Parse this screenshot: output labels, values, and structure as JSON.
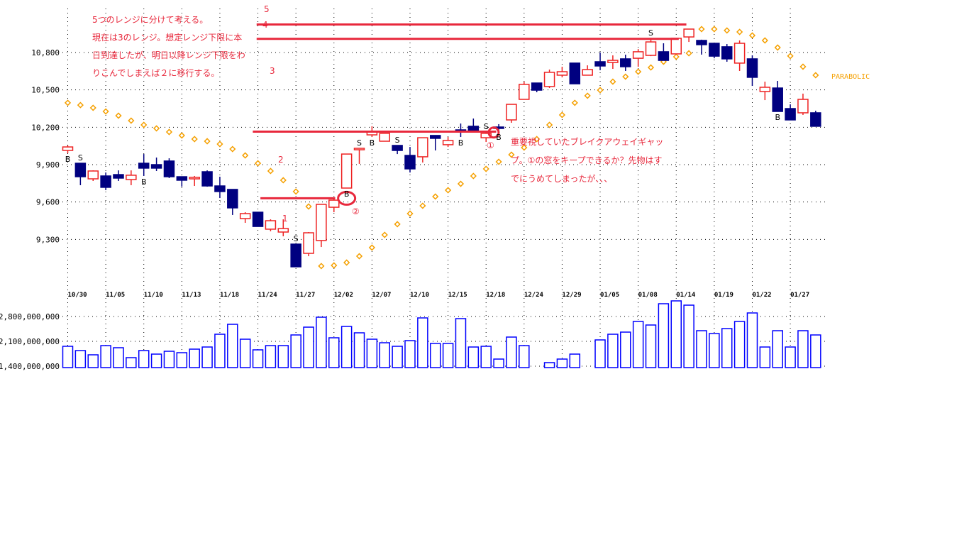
{
  "chart_data": [
    {
      "type": "candlestick",
      "title": "",
      "ylim": [
        9000,
        11050
      ],
      "grid": true,
      "y_ticks": [
        "10,800",
        "10,500",
        "10,200",
        "9,900",
        "9,600",
        "9,300"
      ],
      "y_tick_values": [
        10800,
        10500,
        10200,
        9900,
        9600,
        9300
      ],
      "x_tick_labels": [
        "10/30",
        "11/05",
        "11/10",
        "11/13",
        "11/18",
        "11/24",
        "11/27",
        "12/02",
        "12/07",
        "12/10",
        "12/15",
        "12/18",
        "12/24",
        "12/29",
        "01/05",
        "01/08",
        "01/14",
        "01/19",
        "01/22",
        "01/27"
      ],
      "ohlc": [
        [
          10014,
          10054,
          9991,
          10042
        ],
        [
          9911,
          9911,
          9735,
          9803
        ],
        [
          9786,
          9854,
          9769,
          9849
        ],
        [
          9809,
          9837,
          9695,
          9718
        ],
        [
          9820,
          9854,
          9769,
          9792
        ],
        [
          9780,
          9854,
          9735,
          9815
        ],
        [
          9911,
          9985,
          9809,
          9872
        ],
        [
          9900,
          9957,
          9849,
          9872
        ],
        [
          9929,
          9951,
          9792,
          9803
        ],
        [
          9803,
          9803,
          9723,
          9775
        ],
        [
          9786,
          9809,
          9729,
          9798
        ],
        [
          9843,
          9854,
          9723,
          9729
        ],
        [
          9729,
          9803,
          9632,
          9684
        ],
        [
          9701,
          9701,
          9496,
          9553
        ],
        [
          9467,
          9518,
          9433,
          9507
        ],
        [
          9518,
          9518,
          9404,
          9404
        ],
        [
          9382,
          9461,
          9365,
          9450
        ],
        [
          9359,
          9461,
          9325,
          9387
        ],
        [
          9262,
          9262,
          9080,
          9080
        ],
        [
          9188,
          9359,
          9165,
          9353
        ],
        [
          9291,
          9581,
          9239,
          9581
        ],
        [
          9558,
          9638,
          9518,
          9615
        ],
        [
          9712,
          9985,
          9712,
          9985
        ],
        [
          10020,
          10031,
          9906,
          10031
        ],
        [
          10139,
          10208,
          10122,
          10168
        ],
        [
          10088,
          10151,
          10088,
          10151
        ],
        [
          10054,
          10054,
          9985,
          10014
        ],
        [
          9974,
          10042,
          9837,
          9866
        ],
        [
          9963,
          10116,
          9917,
          10116
        ],
        [
          10134,
          10134,
          10014,
          10111
        ],
        [
          10060,
          10122,
          10042,
          10094
        ],
        [
          10179,
          10230,
          10122,
          10173
        ],
        [
          10208,
          10270,
          10168,
          10168
        ],
        [
          10116,
          10162,
          10082,
          10151
        ],
        [
          10202,
          10225,
          10168,
          10191
        ],
        [
          10259,
          10384,
          10236,
          10384
        ],
        [
          10424,
          10566,
          10424,
          10544
        ],
        [
          10555,
          10555,
          10481,
          10498
        ],
        [
          10527,
          10663,
          10515,
          10641
        ],
        [
          10618,
          10686,
          10601,
          10646
        ],
        [
          10715,
          10715,
          10549,
          10549
        ],
        [
          10618,
          10697,
          10618,
          10663
        ],
        [
          10726,
          10800,
          10658,
          10692
        ],
        [
          10720,
          10777,
          10669,
          10737
        ],
        [
          10749,
          10783,
          10652,
          10686
        ],
        [
          10754,
          10828,
          10686,
          10806
        ],
        [
          10777,
          10914,
          10771,
          10885
        ],
        [
          10806,
          10874,
          10737,
          10737
        ],
        [
          10789,
          10914,
          10789,
          10914
        ],
        [
          10925,
          10988,
          10885,
          10988
        ],
        [
          10897,
          10903,
          10783,
          10863
        ],
        [
          10874,
          10874,
          10754,
          10771
        ],
        [
          10846,
          10868,
          10726,
          10749
        ],
        [
          10715,
          10897,
          10652,
          10874
        ],
        [
          10749,
          10777,
          10532,
          10601
        ],
        [
          10487,
          10566,
          10418,
          10521
        ],
        [
          10515,
          10572,
          10327,
          10327
        ],
        [
          10350,
          10384,
          10259,
          10259
        ],
        [
          10316,
          10470,
          10299,
          10424
        ],
        [
          10316,
          10333,
          10208,
          10208
        ]
      ],
      "parabolic": {
        "name": "PARABOLIC",
        "values": [
          10396,
          10378,
          10356,
          10327,
          10293,
          10253,
          10219,
          10191,
          10162,
          10134,
          10105,
          10088,
          10065,
          10025,
          9974,
          9911,
          9849,
          9775,
          9684,
          9564,
          9086,
          9091,
          9114,
          9165,
          9234,
          9336,
          9422,
          9507,
          9570,
          9644,
          9695,
          9746,
          9809,
          9866,
          9923,
          9980,
          10037,
          10105,
          10219,
          10299,
          10396,
          10453,
          10498,
          10566,
          10606,
          10646,
          10680,
          10726,
          10766,
          10794,
          10988,
          10988,
          10977,
          10965,
          10937,
          10897,
          10840,
          10772,
          10686,
          10618
        ]
      },
      "signals": [
        {
          "index": 0,
          "label": "B"
        },
        {
          "index": 1,
          "label": "S"
        },
        {
          "index": 6,
          "label": "B"
        },
        {
          "index": 18,
          "label": "S"
        },
        {
          "index": 22,
          "label": "B"
        },
        {
          "index": 23,
          "label": "S"
        },
        {
          "index": 24,
          "label": "B"
        },
        {
          "index": 26,
          "label": "S"
        },
        {
          "index": 31,
          "label": "B"
        },
        {
          "index": 33,
          "label": "S"
        },
        {
          "index": 34,
          "label": "B"
        },
        {
          "index": 46,
          "label": "S"
        },
        {
          "index": 56,
          "label": "B"
        }
      ],
      "colors": {
        "up": "#ee2222",
        "down": "#000080",
        "parabolic": "#f5a000",
        "range_line": "#e8283c",
        "blue_band": "#b3d1ff",
        "pink_band": "#ffb3b3"
      },
      "annotations": {
        "range_labels": [
          "5",
          "4",
          "3",
          "2",
          "1"
        ],
        "circle_labels": [
          "①",
          "②"
        ],
        "note1": [
          "5つのレンジに分けて考える。",
          "現在は3のレンジ。想定レンジ下限に本",
          "日到達したが、明日以降レンジ下限をわ",
          "りこんでしまえば２に移行する。"
        ],
        "note2": [
          "重要視していたブレイクアウェイギャッ",
          "プ。①の窓をキープできるか？先物はす",
          "でにうめてしまったが、、、"
        ]
      }
    },
    {
      "type": "bar",
      "title": "",
      "ylim": [
        1400000000,
        3300000000
      ],
      "y_ticks": [
        "2,800,000,000",
        "2,100,000,000",
        "1,400,000,000"
      ],
      "y_tick_values": [
        2800000000,
        2100000000,
        1400000000
      ],
      "values": [
        1960000000,
        1840000000,
        1720000000,
        1980000000,
        1920000000,
        1640000000,
        1840000000,
        1740000000,
        1820000000,
        1780000000,
        1880000000,
        1940000000,
        2300000000,
        2580000000,
        2160000000,
        1860000000,
        1980000000,
        1980000000,
        2280000000,
        2500000000,
        2780000000,
        2200000000,
        2520000000,
        2340000000,
        2160000000,
        2060000000,
        1960000000,
        2120000000,
        2760000000,
        2040000000,
        2040000000,
        2740000000,
        1940000000,
        1960000000,
        1600000000,
        2220000000,
        1980000000,
        null,
        1500000000,
        1600000000,
        1740000000,
        null,
        2140000000,
        2300000000,
        2360000000,
        2660000000,
        2560000000,
        3160000000,
        3240000000,
        3120000000,
        2400000000,
        2320000000,
        2460000000,
        2660000000,
        2900000000,
        1940000000,
        2400000000,
        1940000000,
        2400000000,
        2280000000
      ],
      "colors": {
        "bar": "#0000ff"
      }
    }
  ]
}
